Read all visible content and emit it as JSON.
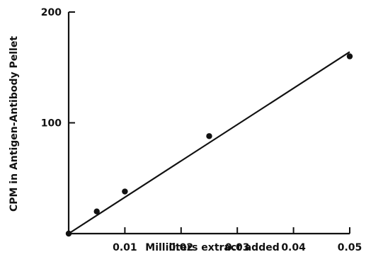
{
  "chart_data": {
    "type": "scatter",
    "title": "",
    "xlabel": "Milliliters extract added",
    "ylabel": "CPM in Antigen-Antibody Pellet",
    "xlim": [
      0,
      0.05
    ],
    "ylim": [
      0,
      200
    ],
    "x_ticks": [
      {
        "value": 0.01,
        "label": "0.01"
      },
      {
        "value": 0.02,
        "label": "0.02"
      },
      {
        "value": 0.03,
        "label": "0.03"
      },
      {
        "value": 0.04,
        "label": "0.04"
      },
      {
        "value": 0.05,
        "label": "0.05"
      }
    ],
    "y_ticks": [
      {
        "value": 100,
        "label": "100"
      },
      {
        "value": 200,
        "label": "200"
      }
    ],
    "series": [
      {
        "points": [
          {
            "x": 0.0,
            "y": 0
          },
          {
            "x": 0.005,
            "y": 20
          },
          {
            "x": 0.01,
            "y": 38
          },
          {
            "x": 0.025,
            "y": 88
          },
          {
            "x": 0.05,
            "y": 160
          }
        ]
      }
    ],
    "fit_line": {
      "x0": 0.0,
      "y0": 0,
      "x1": 0.05,
      "y1": 164
    },
    "grid": false,
    "legend": "none",
    "colors": {
      "ink": "#111111",
      "background": "#ffffff"
    }
  }
}
